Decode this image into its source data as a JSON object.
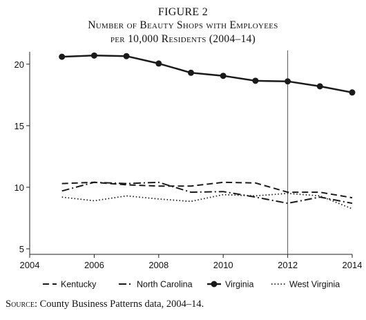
{
  "figure": {
    "number": "FIGURE 2",
    "title_line1": "Number of Beauty Shops with Employees",
    "title_line2": "per 10,000 Residents (2004–14)"
  },
  "source": {
    "label": "Source:",
    "text": " County Business Patterns data, 2004–14."
  },
  "chart_data": {
    "type": "line",
    "title": "Number of Beauty Shops with Employees per 10,000 Residents (2004–14)",
    "xlabel": "",
    "ylabel": "",
    "xlim": [
      2004,
      2014
    ],
    "ylim": [
      5,
      21
    ],
    "x_ticks": [
      2004,
      2006,
      2008,
      2010,
      2012,
      2014
    ],
    "y_ticks": [
      5,
      10,
      15,
      20
    ],
    "grid": false,
    "reference_line_x": 2012,
    "legend_position": "bottom",
    "x": [
      2005,
      2006,
      2007,
      2008,
      2009,
      2010,
      2011,
      2012,
      2013,
      2014
    ],
    "series": [
      {
        "name": "Kentucky",
        "style": "dashed",
        "values": [
          10.3,
          10.4,
          10.2,
          10.1,
          10.1,
          10.4,
          10.35,
          9.6,
          9.6,
          9.15
        ]
      },
      {
        "name": "North Carolina",
        "style": "dashdot",
        "values": [
          9.7,
          10.4,
          10.3,
          10.4,
          9.6,
          9.65,
          9.2,
          8.7,
          9.2,
          8.7
        ]
      },
      {
        "name": "Virginia",
        "style": "solid-markers",
        "values": [
          20.6,
          20.7,
          20.65,
          20.05,
          19.3,
          19.05,
          18.65,
          18.6,
          18.2,
          17.7
        ]
      },
      {
        "name": "West Virginia",
        "style": "dotted",
        "values": [
          9.2,
          8.9,
          9.3,
          9.05,
          8.85,
          9.4,
          9.3,
          9.5,
          9.3,
          8.25
        ]
      }
    ]
  }
}
